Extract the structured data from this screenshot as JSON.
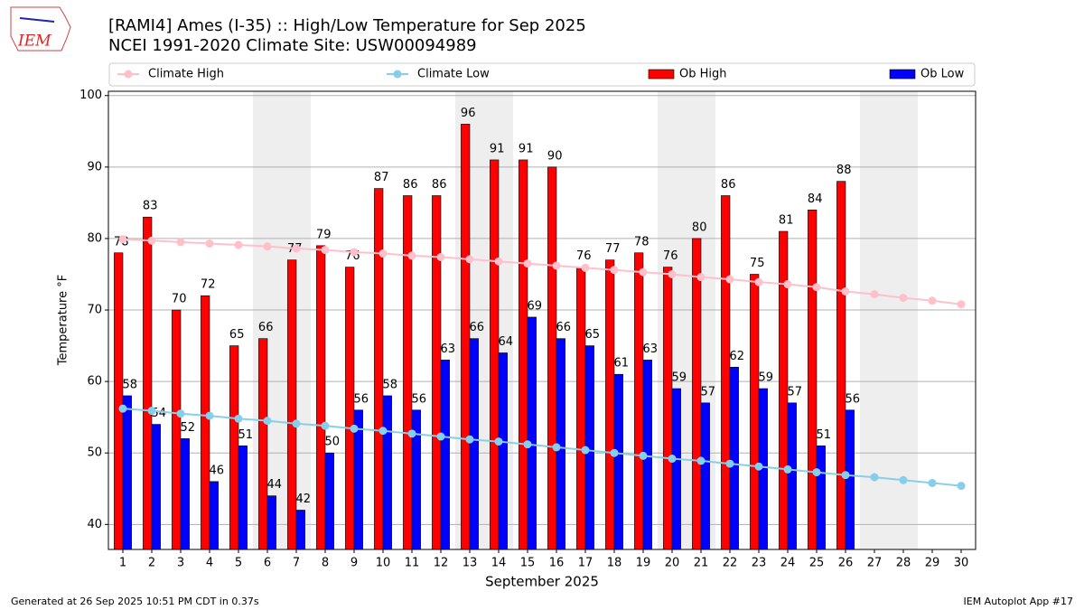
{
  "logo_text": "IEM",
  "footer": {
    "left": "Generated at 26 Sep 2025 10:51 PM CDT in 0.37s",
    "right": "IEM Autoplot App #17"
  },
  "chart_data": {
    "type": "bar",
    "title": "[RAMI4] Ames (I-35) :: High/Low Temperature for Sep 2025",
    "subtitle": "NCEI 1991-2020 Climate Site: USW00094989",
    "xlabel": "September 2025",
    "ylabel": "Temperature °F",
    "x": [
      1,
      2,
      3,
      4,
      5,
      6,
      7,
      8,
      9,
      10,
      11,
      12,
      13,
      14,
      15,
      16,
      17,
      18,
      19,
      20,
      21,
      22,
      23,
      24,
      25,
      26,
      27,
      28,
      29,
      30
    ],
    "xlim": [
      0.5,
      30.5
    ],
    "xticks": [
      1,
      2,
      3,
      4,
      5,
      6,
      7,
      8,
      9,
      10,
      11,
      12,
      13,
      14,
      15,
      16,
      17,
      18,
      19,
      20,
      21,
      22,
      23,
      24,
      25,
      26,
      27,
      28,
      29,
      30
    ],
    "ylim": [
      36.5,
      100.6
    ],
    "yticks": [
      40,
      50,
      60,
      70,
      80,
      90,
      100
    ],
    "grid": true,
    "shaded_days": [
      6,
      7,
      13,
      14,
      20,
      21,
      27,
      28
    ],
    "shade_color": "#eeeeee",
    "series": [
      {
        "name": "Climate High",
        "kind": "line",
        "color": "#ffc0cb",
        "values": [
          79.9,
          79.7,
          79.5,
          79.3,
          79.1,
          78.9,
          78.6,
          78.4,
          78.1,
          77.9,
          77.6,
          77.4,
          77.1,
          76.8,
          76.5,
          76.2,
          75.9,
          75.6,
          75.3,
          75.0,
          74.6,
          74.3,
          73.9,
          73.6,
          73.2,
          72.6,
          72.2,
          71.7,
          71.3,
          70.8
        ]
      },
      {
        "name": "Climate Low",
        "kind": "line",
        "color": "#87ceeb",
        "values": [
          56.2,
          55.9,
          55.5,
          55.2,
          54.8,
          54.5,
          54.1,
          53.8,
          53.4,
          53.1,
          52.7,
          52.3,
          51.9,
          51.6,
          51.2,
          50.8,
          50.4,
          50.0,
          49.6,
          49.2,
          48.9,
          48.5,
          48.1,
          47.7,
          47.3,
          46.9,
          46.6,
          46.2,
          45.8,
          45.4
        ]
      },
      {
        "name": "Ob High",
        "kind": "bar",
        "color": "#ff0000",
        "values": [
          78,
          83,
          70,
          72,
          65,
          66,
          77,
          79,
          76,
          87,
          86,
          86,
          96,
          91,
          91,
          90,
          76,
          77,
          78,
          76,
          80,
          86,
          75,
          81,
          84,
          88,
          null,
          null,
          null,
          null
        ]
      },
      {
        "name": "Ob Low",
        "kind": "bar",
        "color": "#0000ff",
        "values": [
          58,
          54,
          52,
          46,
          51,
          44,
          42,
          50,
          56,
          58,
          56,
          63,
          66,
          64,
          69,
          66,
          65,
          61,
          63,
          59,
          57,
          62,
          59,
          57,
          51,
          56,
          null,
          null,
          null,
          null
        ]
      }
    ]
  }
}
